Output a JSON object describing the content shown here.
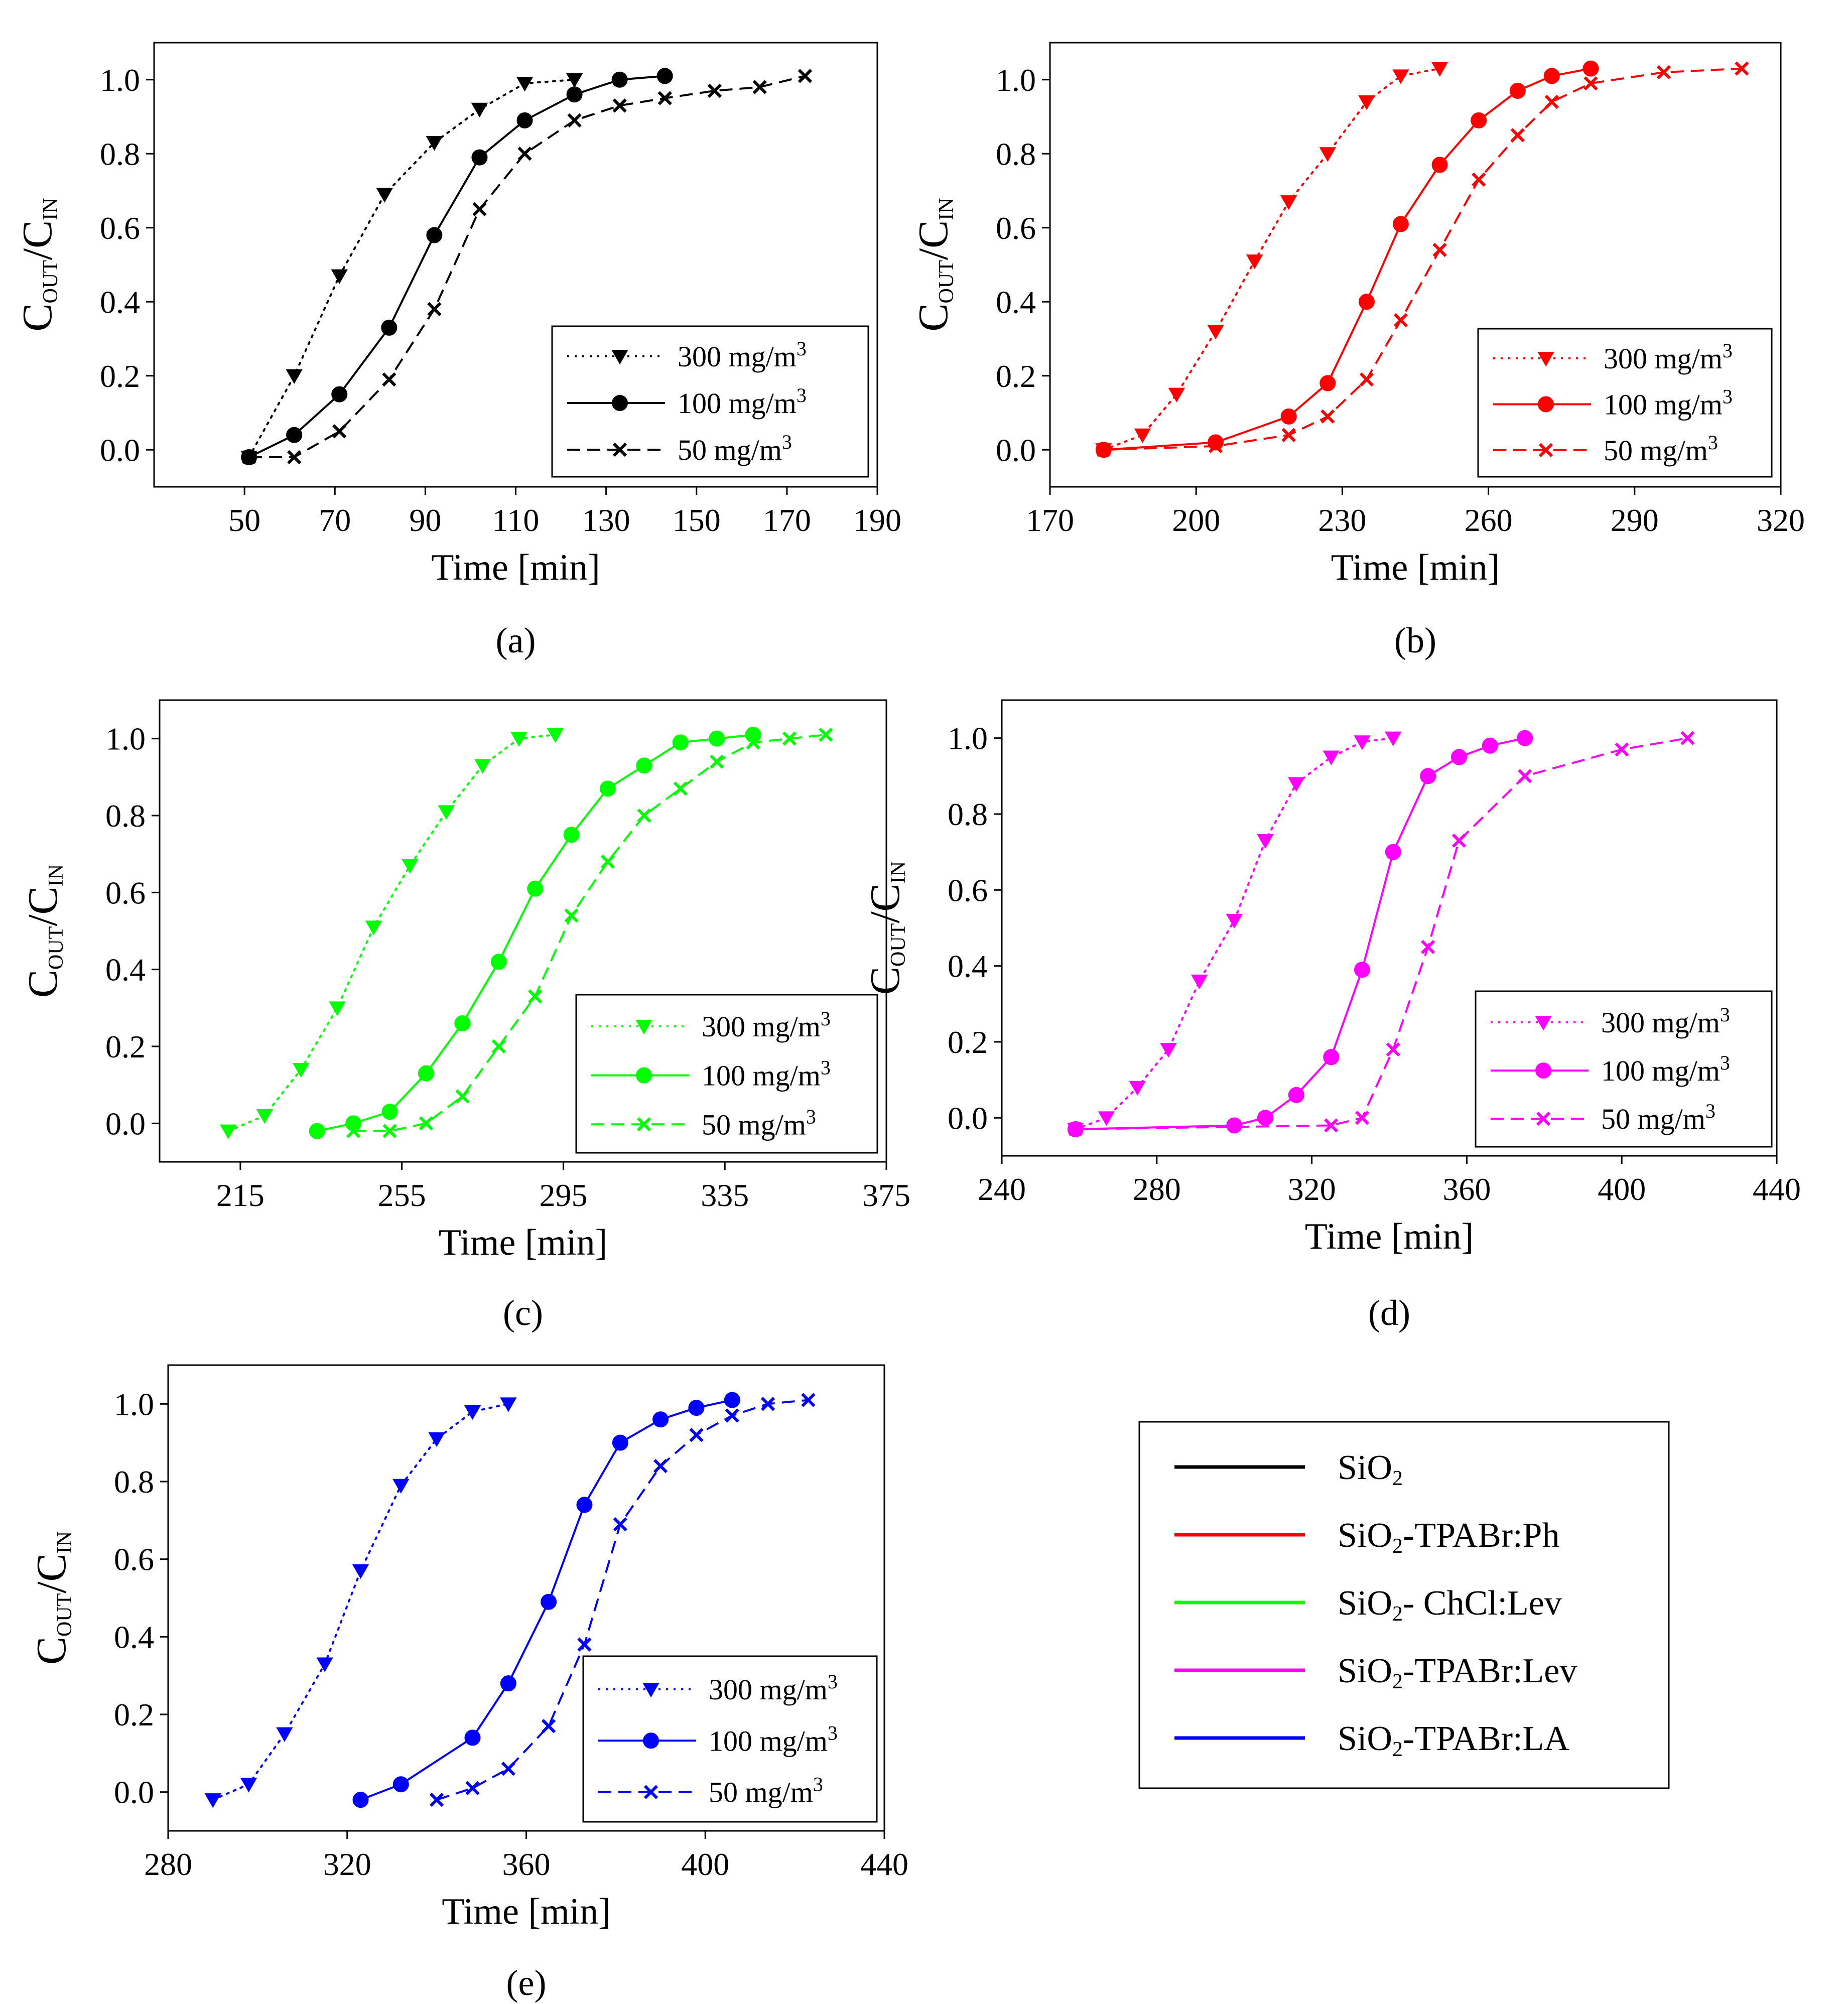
{
  "chart_data": [
    {
      "type": "line",
      "panel_label": "(a)",
      "material": "SiO2",
      "color": "#000000",
      "xlabel": "Time [min]",
      "ylabel": {
        "main": "C",
        "sub1": "OUT",
        "mid": "/C",
        "sub2": "IN"
      },
      "xlim": [
        30,
        190
      ],
      "ylim": [
        -0.1,
        1.1
      ],
      "xticks": [
        "50",
        "70",
        "90",
        "110",
        "130",
        "150",
        "170",
        "190"
      ],
      "yticks": [
        "0.0",
        "0.2",
        "0.4",
        "0.6",
        "0.8",
        "1.0"
      ],
      "series": [
        {
          "name": "300",
          "unit": "mg/m",
          "exp": "3",
          "marker": "triangle",
          "dash": "dotted",
          "x": [
            51,
            61,
            71,
            81,
            92,
            102,
            112,
            123
          ],
          "y": [
            -0.02,
            0.2,
            0.47,
            0.69,
            0.83,
            0.92,
            0.99,
            1.0
          ]
        },
        {
          "name": "100",
          "unit": "mg/m",
          "exp": "3",
          "marker": "circle",
          "dash": "solid",
          "x": [
            51,
            61,
            71,
            82,
            92,
            102,
            112,
            123,
            133,
            143
          ],
          "y": [
            -0.02,
            0.04,
            0.15,
            0.33,
            0.58,
            0.79,
            0.89,
            0.96,
            1.0,
            1.01
          ]
        },
        {
          "name": "50",
          "unit": "mg/m",
          "exp": "3",
          "marker": "x",
          "dash": "dashed",
          "x": [
            51,
            61,
            71,
            82,
            92,
            102,
            112,
            123,
            133,
            143,
            154,
            164,
            174
          ],
          "y": [
            -0.02,
            -0.02,
            0.05,
            0.19,
            0.38,
            0.65,
            0.8,
            0.89,
            0.93,
            0.95,
            0.97,
            0.98,
            1.01
          ]
        }
      ]
    },
    {
      "type": "line",
      "panel_label": "(b)",
      "material": "SiO2-TPABr:Ph",
      "color": "#ff0000",
      "xlabel": "Time [min]",
      "ylabel": {
        "main": "C",
        "sub1": "OUT",
        "mid": "/C",
        "sub2": "IN"
      },
      "xlim": [
        170,
        320
      ],
      "ylim": [
        -0.1,
        1.1
      ],
      "xticks": [
        "170",
        "200",
        "230",
        "260",
        "290",
        "320"
      ],
      "yticks": [
        "0.0",
        "0.2",
        "0.4",
        "0.6",
        "0.8",
        "1.0"
      ],
      "series": [
        {
          "name": "300",
          "unit": "mg/m",
          "exp": "3",
          "marker": "triangle",
          "dash": "dotted",
          "x": [
            181,
            189,
            196,
            204,
            212,
            219,
            227,
            235,
            242,
            250
          ],
          "y": [
            0.0,
            0.04,
            0.15,
            0.32,
            0.51,
            0.67,
            0.8,
            0.94,
            1.01,
            1.03
          ]
        },
        {
          "name": "100",
          "unit": "mg/m",
          "exp": "3",
          "marker": "circle",
          "dash": "solid",
          "x": [
            181,
            204,
            219,
            227,
            235,
            242,
            250,
            258,
            266,
            273,
            281
          ],
          "y": [
            0.0,
            0.02,
            0.09,
            0.18,
            0.4,
            0.61,
            0.77,
            0.89,
            0.97,
            1.01,
            1.03
          ]
        },
        {
          "name": "50",
          "unit": "mg/m",
          "exp": "3",
          "marker": "x",
          "dash": "dashed",
          "x": [
            181,
            204,
            219,
            227,
            235,
            242,
            250,
            258,
            266,
            273,
            281,
            296,
            312
          ],
          "y": [
            0.0,
            0.01,
            0.04,
            0.09,
            0.19,
            0.35,
            0.54,
            0.73,
            0.85,
            0.94,
            0.99,
            1.02,
            1.03
          ]
        }
      ]
    },
    {
      "type": "line",
      "panel_label": "(c)",
      "material": "SiO2- ChCl:Lev",
      "color": "#00ff00",
      "xlabel": "Time [min]",
      "ylabel": {
        "main": "C",
        "sub1": "OUT",
        "mid": "/C",
        "sub2": "IN"
      },
      "xlim": [
        195,
        375
      ],
      "ylim": [
        -0.1,
        1.1
      ],
      "xticks": [
        "215",
        "255",
        "295",
        "335",
        "375"
      ],
      "yticks": [
        "0.0",
        "0.2",
        "0.4",
        "0.6",
        "0.8",
        "1.0"
      ],
      "series": [
        {
          "name": "300",
          "unit": "mg/m",
          "exp": "3",
          "marker": "triangle",
          "dash": "dotted",
          "x": [
            212,
            221,
            230,
            239,
            248,
            257,
            266,
            275,
            284,
            293
          ],
          "y": [
            -0.02,
            0.02,
            0.14,
            0.3,
            0.51,
            0.67,
            0.81,
            0.93,
            1.0,
            1.01
          ]
        },
        {
          "name": "100",
          "unit": "mg/m",
          "exp": "3",
          "marker": "circle",
          "dash": "solid",
          "x": [
            234,
            243,
            252,
            261,
            270,
            279,
            288,
            297,
            306,
            315,
            324,
            333,
            342
          ],
          "y": [
            -0.02,
            0.0,
            0.03,
            0.13,
            0.26,
            0.42,
            0.61,
            0.75,
            0.87,
            0.93,
            0.99,
            1.0,
            1.01
          ]
        },
        {
          "name": "50",
          "unit": "mg/m",
          "exp": "3",
          "marker": "x",
          "dash": "dashed",
          "x": [
            243,
            252,
            261,
            270,
            279,
            288,
            297,
            306,
            315,
            324,
            333,
            342,
            351,
            360
          ],
          "y": [
            -0.02,
            -0.02,
            0.0,
            0.07,
            0.2,
            0.33,
            0.54,
            0.68,
            0.8,
            0.87,
            0.94,
            0.99,
            1.0,
            1.01
          ]
        }
      ]
    },
    {
      "type": "line",
      "panel_label": "(d)",
      "material": "SiO2-TPABr:Lev",
      "color": "#ff00ff",
      "xlabel": "Time [min]",
      "ylabel": {
        "main": "C",
        "sub1": "OUT",
        "mid": "/C",
        "sub2": "IN"
      },
      "xlim": [
        240,
        440
      ],
      "ylim": [
        -0.1,
        1.1
      ],
      "xticks": [
        "240",
        "280",
        "320",
        "360",
        "400",
        "440"
      ],
      "yticks": [
        "0.0",
        "0.2",
        "0.4",
        "0.6",
        "0.8",
        "1.0"
      ],
      "series": [
        {
          "name": "300",
          "unit": "mg/m",
          "exp": "3",
          "marker": "triangle",
          "dash": "dotted",
          "x": [
            259,
            267,
            275,
            283,
            291,
            300,
            308,
            316,
            325,
            333,
            341
          ],
          "y": [
            -0.03,
            0.0,
            0.08,
            0.18,
            0.36,
            0.52,
            0.73,
            0.88,
            0.95,
            0.99,
            1.0
          ]
        },
        {
          "name": "100",
          "unit": "mg/m",
          "exp": "3",
          "marker": "circle",
          "dash": "solid",
          "x": [
            259,
            300,
            308,
            316,
            325,
            333,
            341,
            350,
            358,
            366,
            375
          ],
          "y": [
            -0.03,
            -0.02,
            0.0,
            0.06,
            0.16,
            0.39,
            0.7,
            0.9,
            0.95,
            0.98,
            1.0
          ]
        },
        {
          "name": "50",
          "unit": "mg/m",
          "exp": "3",
          "marker": "x",
          "dash": "dashed",
          "x": [
            259,
            325,
            333,
            341,
            350,
            358,
            375,
            400,
            417
          ],
          "y": [
            -0.03,
            -0.02,
            0.0,
            0.18,
            0.45,
            0.73,
            0.9,
            0.97,
            1.0
          ]
        }
      ]
    },
    {
      "type": "line",
      "panel_label": "(e)",
      "material": "SiO2-TPABr:LA",
      "color": "#0000ff",
      "xlabel": "Time [min]",
      "ylabel": {
        "main": "C",
        "sub1": "OUT",
        "mid": "/C",
        "sub2": "IN"
      },
      "xlim": [
        280,
        440
      ],
      "ylim": [
        -0.1,
        1.1
      ],
      "xticks": [
        "280",
        "320",
        "360",
        "400",
        "440"
      ],
      "yticks": [
        "0.0",
        "0.2",
        "0.4",
        "0.6",
        "0.8",
        "1.0"
      ],
      "series": [
        {
          "name": "300",
          "unit": "mg/m",
          "exp": "3",
          "marker": "triangle",
          "dash": "dotted",
          "x": [
            290,
            298,
            306,
            315,
            323,
            332,
            340,
            348,
            356
          ],
          "y": [
            -0.02,
            0.02,
            0.15,
            0.33,
            0.57,
            0.79,
            0.91,
            0.98,
            1.0
          ]
        },
        {
          "name": "100",
          "unit": "mg/m",
          "exp": "3",
          "marker": "circle",
          "dash": "solid",
          "x": [
            323,
            332,
            348,
            356,
            365,
            373,
            381,
            390,
            398,
            406
          ],
          "y": [
            -0.02,
            0.02,
            0.14,
            0.28,
            0.49,
            0.74,
            0.9,
            0.96,
            0.99,
            1.01
          ]
        },
        {
          "name": "50",
          "unit": "mg/m",
          "exp": "3",
          "marker": "x",
          "dash": "dashed",
          "x": [
            340,
            348,
            356,
            365,
            373,
            381,
            390,
            398,
            406,
            414,
            423
          ],
          "y": [
            -0.02,
            0.01,
            0.06,
            0.17,
            0.38,
            0.69,
            0.84,
            0.92,
            0.97,
            1.0,
            1.01
          ]
        }
      ]
    }
  ],
  "color_key": {
    "items": [
      {
        "base": "SiO",
        "sub": "2",
        "rest": "",
        "color": "#000000"
      },
      {
        "base": "SiO",
        "sub": "2",
        "rest": "-TPABr:Ph",
        "color": "#ff0000"
      },
      {
        "base": "SiO",
        "sub": "2",
        "rest": "- ChCl:Lev",
        "color": "#00ff00"
      },
      {
        "base": "SiO",
        "sub": "2",
        "rest": "-TPABr:Lev",
        "color": "#ff00ff"
      },
      {
        "base": "SiO",
        "sub": "2",
        "rest": "-TPABr:LA",
        "color": "#0000ff"
      }
    ]
  }
}
